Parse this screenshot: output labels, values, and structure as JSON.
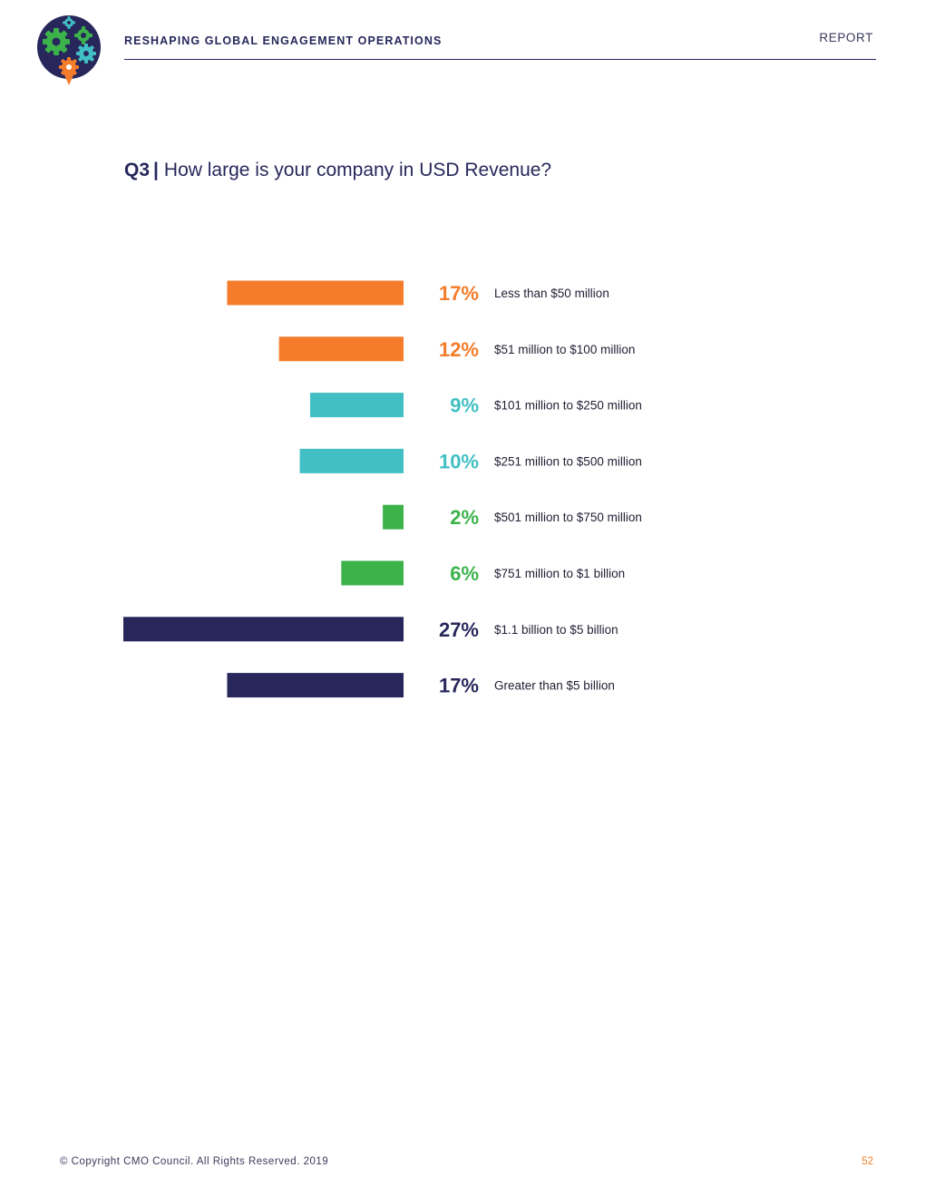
{
  "header": {
    "title": "RESHAPING GLOBAL ENGAGEMENT OPERATIONS",
    "section": "REPORT",
    "logo": "gears-logo"
  },
  "question": {
    "number": "Q3",
    "separator": "|",
    "text": "How large is your company in USD Revenue?"
  },
  "colors": {
    "orange": "#f47c2a",
    "teal": "#41bfc3",
    "green": "#3cb34a",
    "navy": "#27275c"
  },
  "chart_data": {
    "type": "bar",
    "orientation": "horizontal",
    "categories": [
      "Less than $50 million",
      "$51 million to $100 million",
      "$101 million to $250 million",
      "$251 million to $500 million",
      "$501 million to $750 million",
      "$751 million to $1 billion",
      "$1.1 billion to $5 billion",
      "Greater than $5 billion"
    ],
    "values": [
      17,
      12,
      9,
      10,
      2,
      6,
      27,
      17
    ],
    "value_labels": [
      "17%",
      "12%",
      "9%",
      "10%",
      "2%",
      "6%",
      "27%",
      "17%"
    ],
    "bar_colors": [
      "#f47c2a",
      "#f47c2a",
      "#41bfc3",
      "#41bfc3",
      "#3cb34a",
      "#3cb34a",
      "#27275c",
      "#27275c"
    ],
    "unit": "%",
    "xlim": [
      0,
      27
    ],
    "grid": false
  },
  "footer": {
    "copyright": "© Copyright CMO Council. All Rights Reserved. 2019",
    "page_number": "52"
  }
}
